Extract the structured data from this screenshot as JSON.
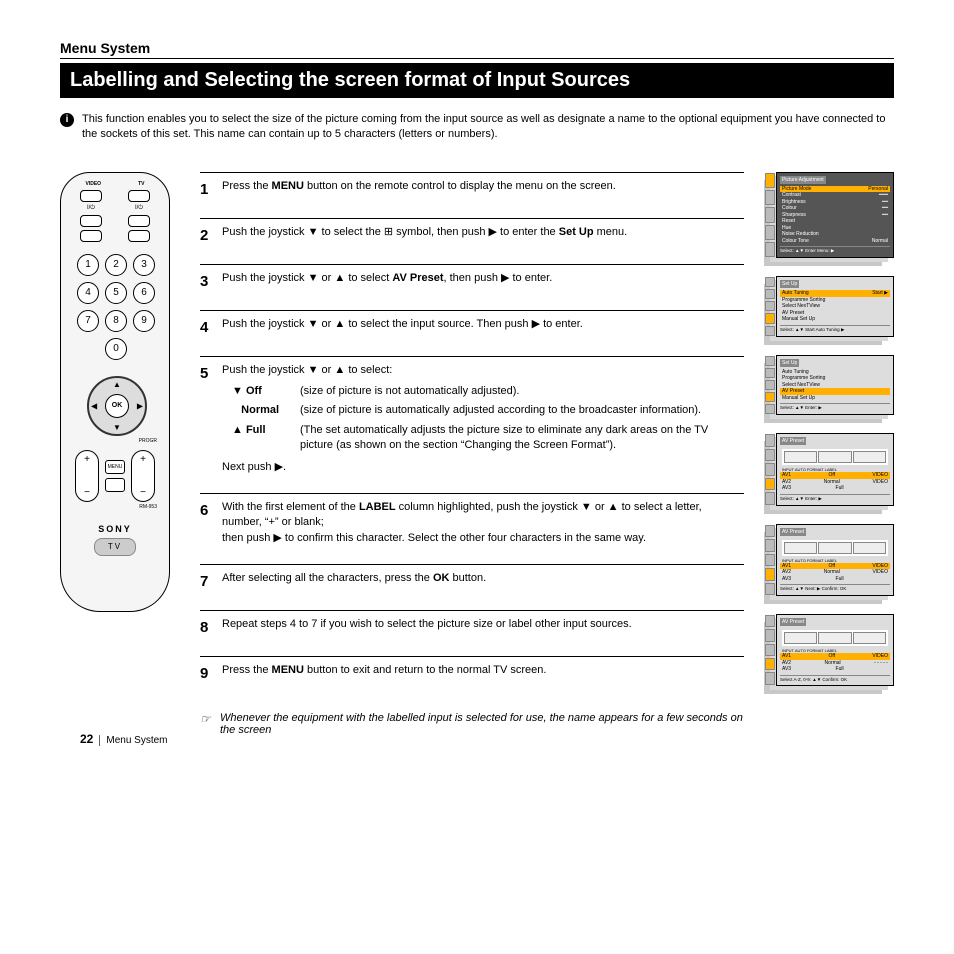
{
  "header": {
    "section": "Menu System",
    "title": "Labelling and Selecting the screen format of Input Sources"
  },
  "intro": "This function enables you to select the size of the picture coming from the input source as well as designate a name to the optional equipment you have connected to the sockets of this set. This name can contain up to 5 characters (letters or numbers).",
  "remote": {
    "top1": "VIDEO",
    "top2": "TV",
    "brand": "SONY",
    "badge": "TV",
    "model": "RM-953",
    "menu_lbl": "MENU",
    "progr": "PROGR",
    "numbers": [
      "1",
      "2",
      "3",
      "4",
      "5",
      "6",
      "7",
      "8",
      "9",
      "",
      "0",
      ""
    ],
    "ok": "OK"
  },
  "steps": [
    {
      "n": "1",
      "html": "Press the <b>MENU</b> button on the remote control to display the menu on the screen."
    },
    {
      "n": "2",
      "html": "Push the joystick ▼ to select the ⊞ symbol, then push ▶ to enter the <b>Set Up</b> menu."
    },
    {
      "n": "3",
      "html": "Push the joystick ▼ or ▲ to select <b>AV Preset</b>, then push ▶ to enter."
    },
    {
      "n": "4",
      "html": "Push the joystick ▼ or ▲ to select the input source. Then push ▶ to enter."
    },
    {
      "n": "5",
      "html": "Push the joystick ▼ or ▲ to select:",
      "subs": [
        {
          "k": "▼ <b>Off</b>",
          "v": "(size of picture is not automatically adjusted)."
        },
        {
          "k": "&nbsp;&nbsp;&nbsp;<b>Normal</b>",
          "v": "(size of picture is automatically adjusted according to the broadcaster information)."
        },
        {
          "k": "▲ <b>Full</b>",
          "v": "(The set automatically adjusts the picture size to eliminate any dark areas on the TV picture (as shown on the section “Changing the Screen Format”)."
        }
      ],
      "after": "Next push ▶."
    },
    {
      "n": "6",
      "html": "With the first element of the <b>LABEL</b> column highlighted, push the joystick ▼ or ▲ to select a letter, number, “+” or blank;<br>then push ▶ to confirm this character. Select the other four characters in the same way."
    },
    {
      "n": "7",
      "html": "After selecting all the characters, press the <b>OK</b> button."
    },
    {
      "n": "8",
      "html": "Repeat steps 4 to 7 if you wish to select the picture size or label other input sources."
    },
    {
      "n": "9",
      "html": "Press the <b>MENU</b> button to exit and return to the normal TV screen."
    }
  ],
  "note": "Whenever the equipment with the labelled input is selected for use, the name appears for a few seconds on the screen",
  "menus": [
    {
      "title": "Picture Adjustment",
      "rows": [
        [
          "Picture Mode",
          "Personal",
          true
        ],
        [
          "Contrast",
          "━━━"
        ],
        [
          "Brightness",
          "━━"
        ],
        [
          "Colour",
          "━━"
        ],
        [
          "Sharpness",
          "━━"
        ],
        [
          "Reset",
          ""
        ],
        [
          "Hue",
          ""
        ],
        [
          "Noise Reduction",
          ""
        ],
        [
          "Colour Tone",
          "Normal"
        ]
      ],
      "foot": "Select: ▲▼  Enter Menu: ▶",
      "active": 0
    },
    {
      "title": "Set Up",
      "rows": [
        [
          "Auto Tuning",
          "Start ▶",
          true
        ],
        [
          "Programme Sorting",
          ""
        ],
        [
          "Select NexTView",
          ""
        ],
        [
          "AV Preset",
          ""
        ],
        [
          "Manual Set Up",
          ""
        ]
      ],
      "foot": "Select: ▲▼  Start Auto Tuning ▶",
      "active": 3,
      "light": true
    },
    {
      "title": "Set Up",
      "rows": [
        [
          "Auto Tuning",
          ""
        ],
        [
          "Programme Sorting",
          ""
        ],
        [
          "Select NexTView",
          ""
        ],
        [
          "AV Preset",
          "",
          true
        ],
        [
          "Manual Set Up",
          ""
        ]
      ],
      "foot": "Select: ▲▼  Enter: ▶",
      "active": 3,
      "light": true
    },
    {
      "title": "AV Preset",
      "tv": true,
      "tvrows": [
        [
          "AV1",
          "Off",
          "VIDEO"
        ],
        [
          "AV2",
          "Normal",
          "VIDEO"
        ],
        [
          "AV3",
          "Full",
          ""
        ]
      ],
      "foot": "Select: ▲▼    Enter: ▶",
      "active": 3,
      "light": true,
      "head": "INPUT  AUTO FORMAT  LABEL"
    },
    {
      "title": "AV Preset",
      "tv": true,
      "tvrows": [
        [
          "AV1",
          "Off",
          "VIDEO"
        ],
        [
          "AV2",
          "Normal",
          "VIDEO"
        ],
        [
          "AV3",
          "Full",
          ""
        ]
      ],
      "foot": "Select: ▲▼ Next: ▶ Confirm: OK",
      "active": 3,
      "light": true,
      "head": "INPUT  AUTO FORMAT  LABEL"
    },
    {
      "title": "AV Preset",
      "tv": true,
      "tvrows": [
        [
          "AV1",
          "Off",
          "VIDEO"
        ],
        [
          "AV2",
          "Normal",
          "- - - - -"
        ],
        [
          "AV3",
          "Full",
          ""
        ]
      ],
      "foot": "Select A-Z, 0-9: ▲▼ Confirm: OK",
      "active": 3,
      "light": true,
      "head": "INPUT  AUTO FORMAT  LABEL"
    }
  ],
  "footer": {
    "page": "22",
    "section": "Menu System"
  }
}
